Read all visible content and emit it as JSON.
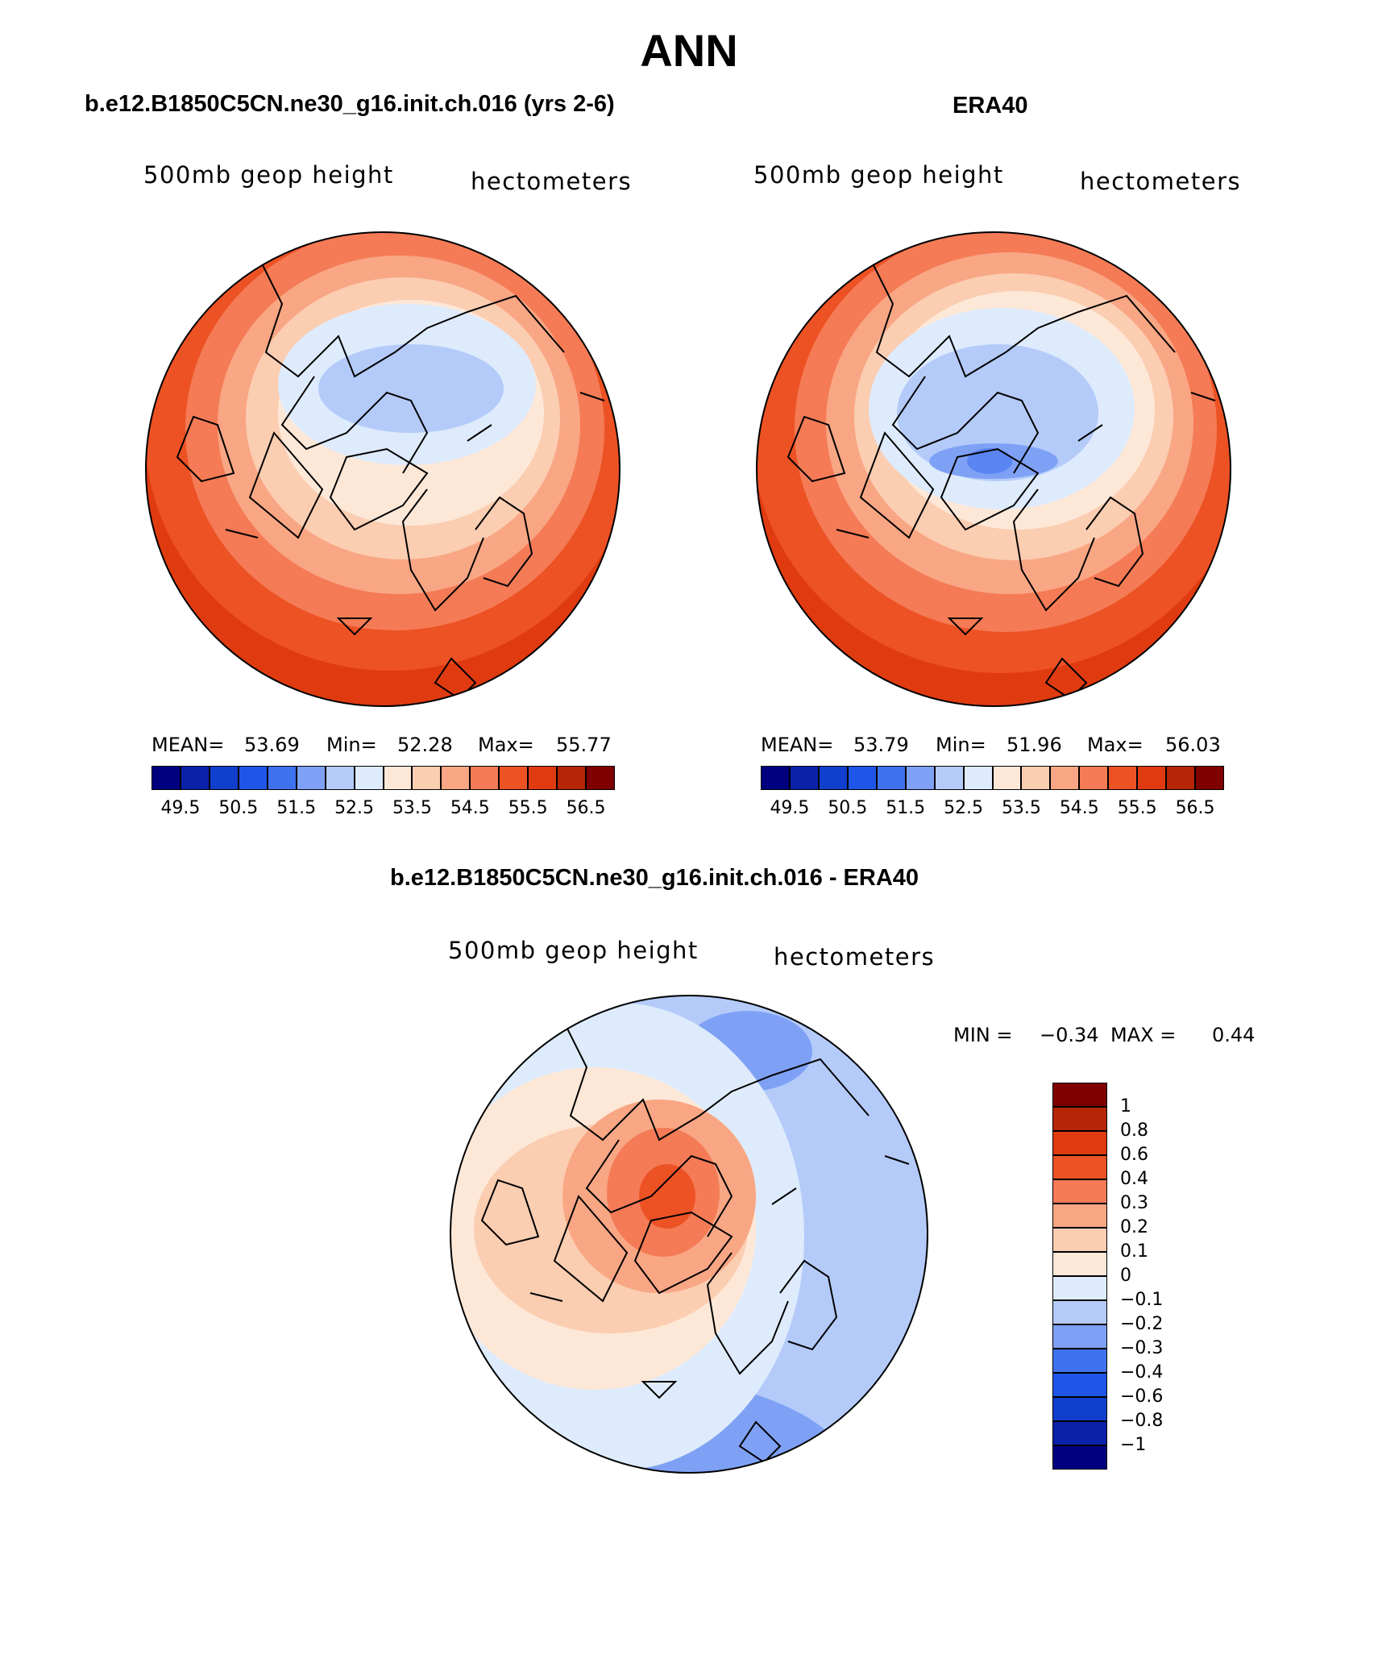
{
  "figure": {
    "title": "ANN",
    "field_label": "500mb geop height",
    "units_label": "hectometers"
  },
  "panels": [
    {
      "title": "b.e12.B1850C5CN.ne30_g16.init.ch.016 (yrs 2-6)",
      "stats": {
        "mean_label": "MEAN=",
        "mean": "53.69",
        "min_label": "Min=",
        "min": "52.28",
        "max_label": "Max=",
        "max": "55.77"
      }
    },
    {
      "title": "ERA40",
      "stats": {
        "mean_label": "MEAN=",
        "mean": "53.79",
        "min_label": "Min=",
        "min": "51.96",
        "max_label": "Max=",
        "max": "56.03"
      }
    }
  ],
  "absolute_colorbar": {
    "colors": [
      "#00007f",
      "#0a21aa",
      "#0f3fcc",
      "#1f56e8",
      "#3f72ee",
      "#7fa1f5",
      "#b4cbfa",
      "#deebfc",
      "#fde8d8",
      "#fbcdb1",
      "#f9a684",
      "#f47b56",
      "#ed5224",
      "#e03b10",
      "#b52506",
      "#7f0000"
    ],
    "tick_labels": [
      "49.5",
      "50.5",
      "51.5",
      "52.5",
      "53.5",
      "54.5",
      "55.5",
      "56.5"
    ]
  },
  "difference_panel": {
    "title": "b.e12.B1850C5CN.ne30_g16.init.ch.016 - ERA40",
    "min_label": "MIN =",
    "min": "−0.34",
    "max_label": "MAX =",
    "max": "0.44",
    "colorbar": {
      "colors": [
        "#7f0000",
        "#b52506",
        "#e03b10",
        "#ed5224",
        "#f47b56",
        "#f9a684",
        "#fbcdb1",
        "#fde8d8",
        "#deebfc",
        "#b4cbfa",
        "#7fa1f5",
        "#3f72ee",
        "#1f56e8",
        "#0f3fcc",
        "#0a21aa",
        "#00007f"
      ],
      "tick_labels": [
        "1",
        "0.8",
        "0.6",
        "0.4",
        "0.3",
        "0.2",
        "0.1",
        "0",
        "−0.1",
        "−0.2",
        "−0.3",
        "−0.4",
        "−0.6",
        "−0.8",
        "−1"
      ]
    }
  }
}
